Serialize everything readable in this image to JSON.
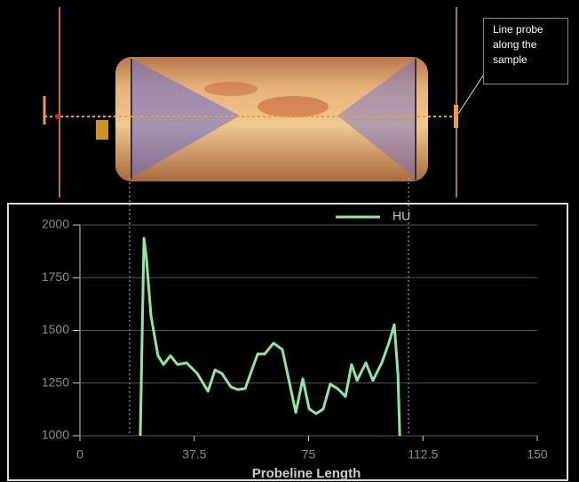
{
  "annotation": "Line probe along the sample",
  "chart_data": {
    "type": "line",
    "xlabel": "Probeline Length",
    "xlim": [
      0,
      150
    ],
    "xticks": [
      0,
      37.5,
      75,
      112.5,
      150
    ],
    "ylim": [
      1000,
      2000
    ],
    "yticks": [
      1000,
      1250,
      1500,
      1750,
      2000
    ],
    "grid": true,
    "legend": "upper center",
    "x": [
      19.8,
      21,
      21.8,
      23.3,
      25.6,
      27.4,
      29.7,
      32,
      35,
      38.5,
      42,
      44.3,
      46.6,
      49.5,
      51.8,
      54.2,
      58.3,
      60.6,
      63.5,
      66.4,
      68.7,
      70.8,
      73.1,
      75.2,
      77.5,
      79.8,
      82.1,
      84.5,
      87.1,
      89.1,
      90.9,
      93.8,
      96.1,
      99,
      101.4,
      103.1,
      104.3,
      104.9
    ],
    "series": [
      {
        "name": "HU",
        "color": "#8ee8a0",
        "values": [
          1000,
          1937,
          1844,
          1570,
          1380,
          1338,
          1380,
          1338,
          1346,
          1295,
          1211,
          1312,
          1295,
          1232,
          1219,
          1224,
          1388,
          1388,
          1439,
          1409,
          1253,
          1110,
          1270,
          1127,
          1105,
          1127,
          1245,
          1224,
          1186,
          1338,
          1262,
          1346,
          1262,
          1346,
          1443,
          1527,
          1295,
          1000
        ]
      }
    ]
  }
}
